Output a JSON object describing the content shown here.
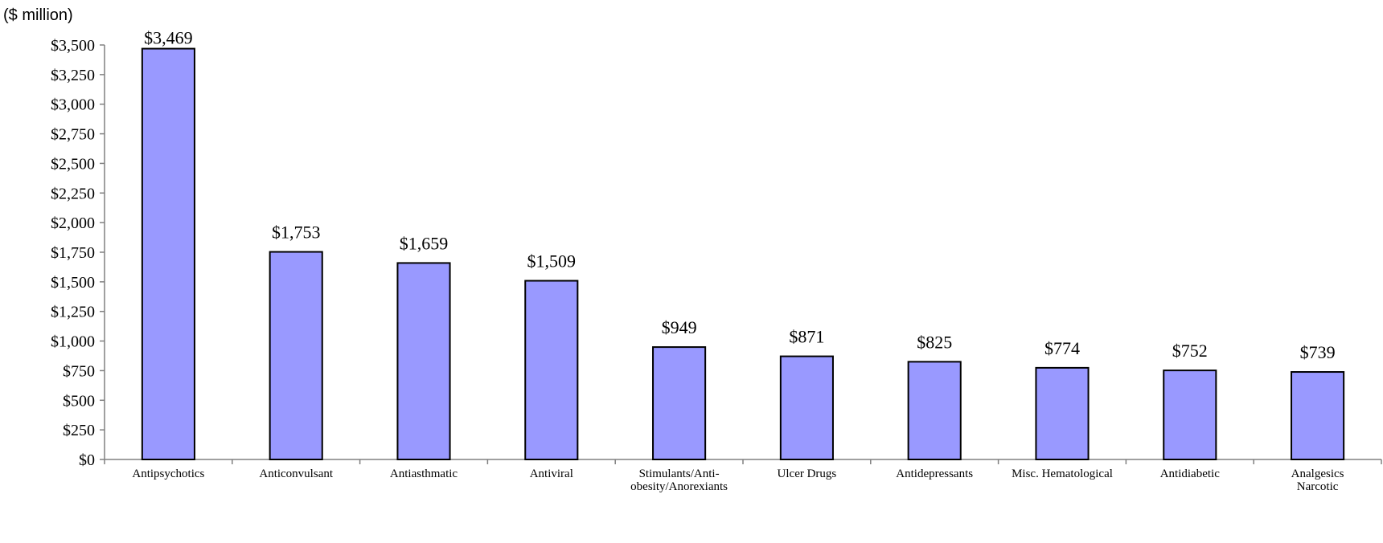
{
  "chart_data": {
    "type": "bar",
    "unit_label": "($ million)",
    "categories": [
      [
        "Antipsychotics"
      ],
      [
        "Anticonvulsant"
      ],
      [
        "Antiasthmatic"
      ],
      [
        "Antiviral"
      ],
      [
        "Stimulants/Anti-",
        "obesity/Anorexiants"
      ],
      [
        "Ulcer Drugs"
      ],
      [
        "Antidepressants"
      ],
      [
        "Misc. Hematological"
      ],
      [
        "Antidiabetic"
      ],
      [
        "Analgesics",
        "Narcotic"
      ]
    ],
    "values": [
      3469,
      1753,
      1659,
      1509,
      949,
      871,
      825,
      774,
      752,
      739
    ],
    "data_labels": [
      "$3,469",
      "$1,753",
      "$1,659",
      "$1,509",
      "$949",
      "$871",
      "$825",
      "$774",
      "$752",
      "$739"
    ],
    "yticks": [
      0,
      250,
      500,
      750,
      1000,
      1250,
      1500,
      1750,
      2000,
      2250,
      2500,
      2750,
      3000,
      3250,
      3500
    ],
    "ytick_labels": [
      "$0",
      "$250",
      "$500",
      "$750",
      "$1,000",
      "$1,250",
      "$1,500",
      "$1,750",
      "$2,000",
      "$2,250",
      "$2,500",
      "$2,750",
      "$3,000",
      "$3,250",
      "$3,500"
    ],
    "ylim": [
      0,
      3500
    ],
    "bar_color": "#9999ff",
    "bar_edge_color": "#000000",
    "grid": false,
    "legend": "none"
  }
}
